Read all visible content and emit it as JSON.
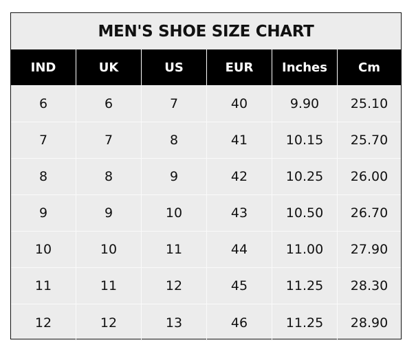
{
  "title": "MEN'S SHOE SIZE CHART",
  "headers": [
    "IND",
    "UK",
    "US",
    "EUR",
    "Inches",
    "Cm"
  ],
  "rows": [
    [
      "6",
      "6",
      "7",
      "40",
      "9.90",
      "25.10"
    ],
    [
      "7",
      "7",
      "8",
      "41",
      "10.15",
      "25.70"
    ],
    [
      "8",
      "8",
      "9",
      "42",
      "10.25",
      "26.00"
    ],
    [
      "9",
      "9",
      "10",
      "43",
      "10.50",
      "26.70"
    ],
    [
      "10",
      "10",
      "11",
      "44",
      "11.00",
      "27.90"
    ],
    [
      "11",
      "11",
      "12",
      "45",
      "11.25",
      "28.30"
    ],
    [
      "12",
      "12",
      "13",
      "46",
      "11.25",
      "28.90"
    ]
  ],
  "colors": {
    "header_bg": "#000000",
    "body_bg": "#ececec",
    "header_text": "#ffffff"
  }
}
